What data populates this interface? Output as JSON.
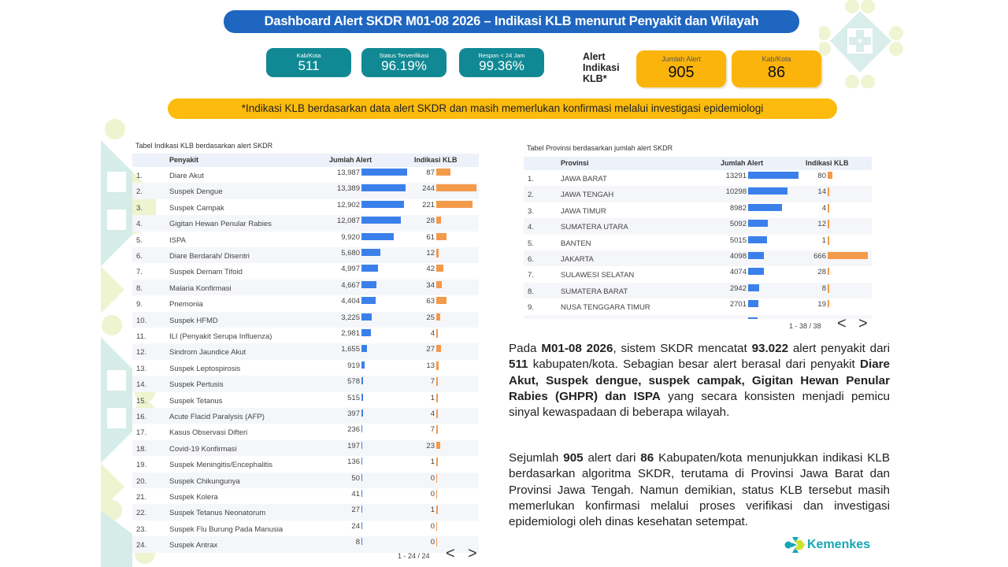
{
  "header": {
    "title": "Dashboard Alert SKDR M01-08 2026 – Indikasi KLB menurut Penyakit dan Wilayah"
  },
  "kpis": [
    {
      "label": "Kab/Kota",
      "value": "511"
    },
    {
      "label": "Status Terverifikasi",
      "value": "96.19%"
    },
    {
      "label": "Respon < 24 Jam",
      "value": "99.36%"
    }
  ],
  "klb": {
    "label": "Alert Indikasi KLB*",
    "label_lines": [
      "Alert",
      "Indikasi",
      "KLB*"
    ],
    "cards": [
      {
        "label": "Jumlah Alert",
        "value": "905"
      },
      {
        "label": "Kab/Kota",
        "value": "86"
      }
    ]
  },
  "note": "*Indikasi KLB berdasarkan data alert SKDR dan masih memerlukan konfirmasi melalui investigasi epidemiologi",
  "disease_table": {
    "caption": "Tabel Indikasi KLB berdasarkan alert SKDR",
    "columns": [
      "Penyakit",
      "Jumlah Alert",
      "Indikasi KLB"
    ],
    "rows": [
      {
        "no": "1.",
        "name": "Diare Akut",
        "alert": "13,987",
        "alert_num": 13987,
        "klb": "87",
        "klb_num": 87
      },
      {
        "no": "2.",
        "name": "Suspek Dengue",
        "alert": "13,389",
        "alert_num": 13389,
        "klb": "244",
        "klb_num": 244
      },
      {
        "no": "3.",
        "name": "Suspek Campak",
        "alert": "12,902",
        "alert_num": 12902,
        "klb": "221",
        "klb_num": 221
      },
      {
        "no": "4.",
        "name": "Gigitan Hewan Penular Rabies",
        "alert": "12,087",
        "alert_num": 12087,
        "klb": "28",
        "klb_num": 28
      },
      {
        "no": "5.",
        "name": "ISPA",
        "alert": "9,920",
        "alert_num": 9920,
        "klb": "61",
        "klb_num": 61
      },
      {
        "no": "6.",
        "name": "Diare Berdarah/ Disentri",
        "alert": "5,680",
        "alert_num": 5680,
        "klb": "12",
        "klb_num": 12
      },
      {
        "no": "7.",
        "name": "Suspek Demam Tifoid",
        "alert": "4,997",
        "alert_num": 4997,
        "klb": "42",
        "klb_num": 42
      },
      {
        "no": "8.",
        "name": "Malaria Konfirmasi",
        "alert": "4,667",
        "alert_num": 4667,
        "klb": "34",
        "klb_num": 34
      },
      {
        "no": "9.",
        "name": "Pnemonia",
        "alert": "4,404",
        "alert_num": 4404,
        "klb": "63",
        "klb_num": 63
      },
      {
        "no": "10.",
        "name": "Suspek HFMD",
        "alert": "3,225",
        "alert_num": 3225,
        "klb": "25",
        "klb_num": 25
      },
      {
        "no": "11.",
        "name": "ILI (Penyakit Serupa Influenza)",
        "alert": "2,981",
        "alert_num": 2981,
        "klb": "4",
        "klb_num": 4
      },
      {
        "no": "12.",
        "name": "Sindrom Jaundice Akut",
        "alert": "1,655",
        "alert_num": 1655,
        "klb": "27",
        "klb_num": 27
      },
      {
        "no": "13.",
        "name": "Suspek Leptospirosis",
        "alert": "919",
        "alert_num": 919,
        "klb": "13",
        "klb_num": 13
      },
      {
        "no": "14.",
        "name": "Suspek Pertusis",
        "alert": "578",
        "alert_num": 578,
        "klb": "7",
        "klb_num": 7
      },
      {
        "no": "15.",
        "name": "Suspek Tetanus",
        "alert": "515",
        "alert_num": 515,
        "klb": "1",
        "klb_num": 1
      },
      {
        "no": "16.",
        "name": "Acute Flacid Paralysis (AFP)",
        "alert": "397",
        "alert_num": 397,
        "klb": "4",
        "klb_num": 4
      },
      {
        "no": "17.",
        "name": "Kasus Observasi Difteri",
        "alert": "236",
        "alert_num": 236,
        "klb": "7",
        "klb_num": 7
      },
      {
        "no": "18.",
        "name": "Covid-19 Konfirmasi",
        "alert": "197",
        "alert_num": 197,
        "klb": "23",
        "klb_num": 23
      },
      {
        "no": "19.",
        "name": "Suspek Meningitis/Encephalitis",
        "alert": "136",
        "alert_num": 136,
        "klb": "1",
        "klb_num": 1
      },
      {
        "no": "20.",
        "name": "Suspek Chikungunya",
        "alert": "50",
        "alert_num": 50,
        "klb": "0",
        "klb_num": 0
      },
      {
        "no": "21.",
        "name": "Suspek Kolera",
        "alert": "41",
        "alert_num": 41,
        "klb": "0",
        "klb_num": 0
      },
      {
        "no": "22.",
        "name": "Suspek Tetanus Neonatorum",
        "alert": "27",
        "alert_num": 27,
        "klb": "1",
        "klb_num": 1
      },
      {
        "no": "23.",
        "name": "Suspek Flu Burung Pada Manusia",
        "alert": "24",
        "alert_num": 24,
        "klb": "0",
        "klb_num": 0
      },
      {
        "no": "24.",
        "name": "Suspek Antrax",
        "alert": "8",
        "alert_num": 8,
        "klb": "0",
        "klb_num": 0
      }
    ],
    "pager": "1 - 24 / 24",
    "prev_icon": "<",
    "next_icon": ">"
  },
  "province_table": {
    "caption": "Tabel Provinsi berdasarkan jumlah alert SKDR",
    "columns": [
      "Provinsi",
      "Jumlah Alert",
      "Indikasi KLB"
    ],
    "rows": [
      {
        "no": "1.",
        "name": "JAWA BARAT",
        "alert": "13291",
        "alert_num": 13291,
        "klb": "80",
        "klb_num": 80
      },
      {
        "no": "2.",
        "name": "JAWA TENGAH",
        "alert": "10298",
        "alert_num": 10298,
        "klb": "14",
        "klb_num": 14
      },
      {
        "no": "3.",
        "name": "JAWA TIMUR",
        "alert": "8982",
        "alert_num": 8982,
        "klb": "4",
        "klb_num": 4
      },
      {
        "no": "4.",
        "name": "SUMATERA UTARA",
        "alert": "5092",
        "alert_num": 5092,
        "klb": "12",
        "klb_num": 12
      },
      {
        "no": "5.",
        "name": "BANTEN",
        "alert": "5015",
        "alert_num": 5015,
        "klb": "1",
        "klb_num": 1
      },
      {
        "no": "6.",
        "name": "JAKARTA",
        "alert": "4098",
        "alert_num": 4098,
        "klb": "666",
        "klb_num": 666
      },
      {
        "no": "7.",
        "name": "SULAWESI SELATAN",
        "alert": "4074",
        "alert_num": 4074,
        "klb": "28",
        "klb_num": 28
      },
      {
        "no": "8.",
        "name": "SUMATERA BARAT",
        "alert": "2942",
        "alert_num": 2942,
        "klb": "8",
        "klb_num": 8
      },
      {
        "no": "9.",
        "name": "NUSA TENGGARA TIMUR",
        "alert": "2701",
        "alert_num": 2701,
        "klb": "19",
        "klb_num": 19
      }
    ],
    "pager": "1 - 38 / 38",
    "prev_icon": "<",
    "next_icon": ">"
  },
  "narrative": {
    "p1": [
      {
        "t": "Pada "
      },
      {
        "t": "M01-08 2026",
        "b": true
      },
      {
        "t": ", sistem SKDR mencatat "
      },
      {
        "t": "93.022",
        "b": true
      },
      {
        "t": " alert penyakit dari "
      },
      {
        "t": "511",
        "b": true
      },
      {
        "t": " kabupaten/kota. Sebagian besar alert berasal dari penyakit "
      },
      {
        "t": "Diare Akut, Suspek dengue, suspek campak, Gigitan Hewan Penular Rabies (GHPR) dan ISPA",
        "b": true
      },
      {
        "t": " yang secara konsisten menjadi pemicu sinyal kewaspadaan di beberapa wilayah."
      }
    ],
    "p2": [
      {
        "t": "Sejumlah "
      },
      {
        "t": "905",
        "b": true
      },
      {
        "t": " alert dari "
      },
      {
        "t": "86",
        "b": true
      },
      {
        "t": " Kabupaten/kota menunjukkan indikasi KLB berdasarkan algoritma SKDR, terutama di Provinsi Jawa Barat dan Provinsi Jawa Tengah. Namun demikian, status KLB tersebut masih memerlukan konfirmasi melalui proses verifikasi dan investigasi epidemiologi oleh dinas kesehatan setempat."
      }
    ]
  },
  "logo": {
    "text": "Kemenkes",
    "icon": "kemenkes-logo-icon"
  },
  "colors": {
    "title_bg": "#1f66c1",
    "kpi_teal": "#108994",
    "kpi_yellow": "#fbb40b",
    "alert_bar": "#3b80ea",
    "klb_bar": "#f39a4b",
    "logo_teal": "#14a7b4"
  }
}
